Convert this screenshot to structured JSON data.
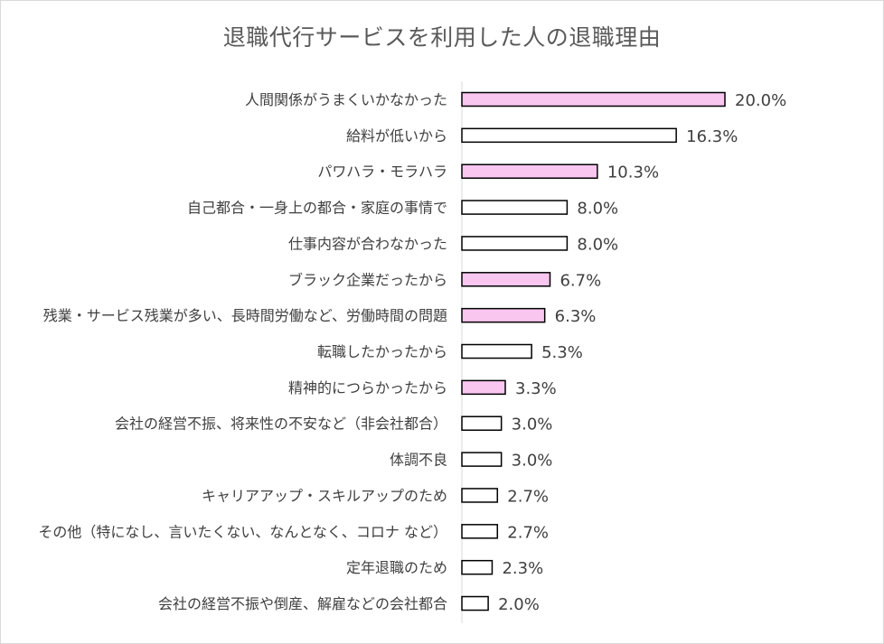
{
  "chart_data": {
    "type": "bar",
    "orientation": "horizontal",
    "title": "退職代行サービスを利用した人の退職理由",
    "xlabel": "",
    "ylabel": "",
    "xlim": [
      0,
      20
    ],
    "grid": false,
    "legend": "none",
    "value_suffix": "%",
    "highlight_color": "#f9c6f0",
    "default_color": "#ffffff",
    "bar_outline_color": "#000000",
    "categories": [
      "人間関係がうまくいかなかった",
      "給料が低いから",
      "パワハラ・モラハラ",
      "自己都合・一身上の都合・家庭の事情で",
      "仕事内容が合わなかった",
      "ブラック企業だったから",
      "残業・サービス残業が多い、長時間労働など、労働時間の問題",
      "転職したかったから",
      "精神的につらかったから",
      "会社の経営不振、将来性の不安など（非会社都合）",
      "体調不良",
      "キャリアアップ・スキルアップのため",
      "その他（特になし、言いたくない、なんとなく、コロナ など）",
      "定年退職のため",
      "会社の経営不振や倒産、解雇などの会社都合"
    ],
    "values": [
      20.0,
      16.3,
      10.3,
      8.0,
      8.0,
      6.7,
      6.3,
      5.3,
      3.3,
      3.0,
      3.0,
      2.7,
      2.7,
      2.3,
      2.0
    ],
    "value_labels": [
      "20.0%",
      "16.3%",
      "10.3%",
      "8.0%",
      "8.0%",
      "6.7%",
      "6.3%",
      "5.3%",
      "3.3%",
      "3.0%",
      "3.0%",
      "2.7%",
      "2.7%",
      "2.3%",
      "2.0%"
    ],
    "highlighted": [
      true,
      false,
      true,
      false,
      false,
      true,
      true,
      false,
      true,
      false,
      false,
      false,
      false,
      false,
      false
    ]
  }
}
